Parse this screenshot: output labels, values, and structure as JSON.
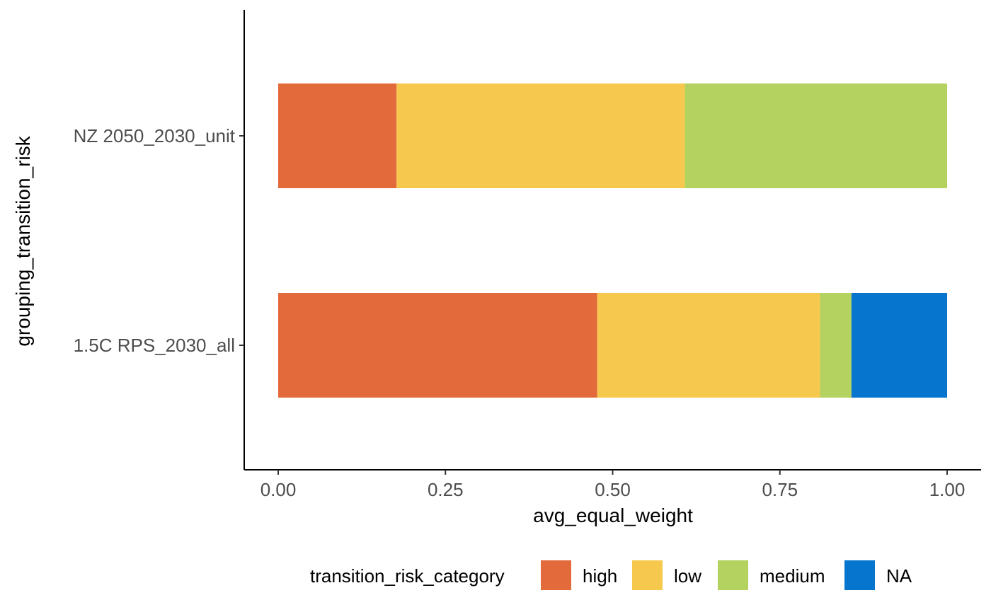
{
  "chart_data": {
    "type": "bar",
    "orientation": "horizontal",
    "stacked": true,
    "categories": [
      "NZ 2050_2030_unit",
      "1.5C RPS_2030_all"
    ],
    "series": [
      {
        "name": "high",
        "color": "#E36A3B",
        "values": [
          0.177,
          0.477
        ]
      },
      {
        "name": "low",
        "color": "#F6C94E",
        "values": [
          0.431,
          0.333
        ]
      },
      {
        "name": "medium",
        "color": "#B3D25F",
        "values": [
          0.392,
          0.047
        ]
      },
      {
        "name": "NA",
        "color": "#0575CE",
        "values": [
          0.0,
          0.143
        ]
      }
    ],
    "xlabel": "avg_equal_weight",
    "ylabel": "grouping_transition_risk",
    "xticks": [
      "0.00",
      "0.25",
      "0.50",
      "0.75",
      "1.00"
    ],
    "xlim": [
      0,
      1
    ],
    "grid": false,
    "legend": {
      "title": "transition_risk_category",
      "position": "bottom"
    }
  }
}
